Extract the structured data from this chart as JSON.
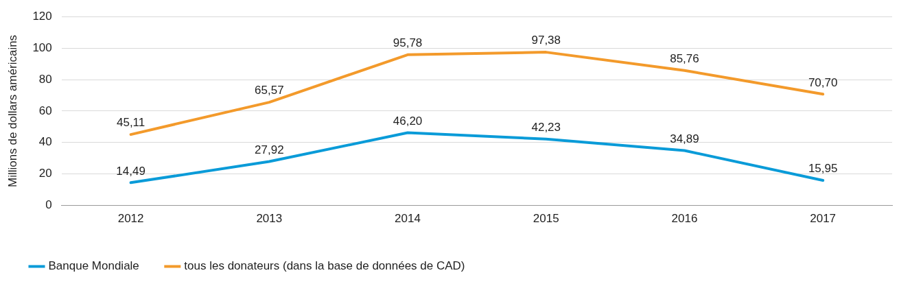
{
  "chart_data": {
    "type": "line",
    "ylabel": "Millions de dollars américains",
    "categories": [
      "2012",
      "2013",
      "2014",
      "2015",
      "2016",
      "2017"
    ],
    "series": [
      {
        "name": "Banque Mondiale",
        "color": "#0a9bd8",
        "values": [
          14.49,
          27.92,
          46.2,
          42.23,
          34.89,
          15.95
        ],
        "value_labels": [
          "14,49",
          "27,92",
          "46,20",
          "42,23",
          "34,89",
          "15,95"
        ]
      },
      {
        "name": "tous les donateurs (dans la base de données de CAD)",
        "color": "#f39a2b",
        "values": [
          45.11,
          65.57,
          95.78,
          97.38,
          85.76,
          70.7
        ],
        "value_labels": [
          "45,11",
          "65,57",
          "95,78",
          "97,38",
          "85,76",
          "70,70"
        ]
      }
    ],
    "ylim": [
      0,
      120
    ],
    "yticks": [
      0,
      20,
      40,
      60,
      80,
      100,
      120
    ],
    "grid": "y",
    "legend": "bottom left",
    "marker": "none",
    "line_style": "solid"
  }
}
